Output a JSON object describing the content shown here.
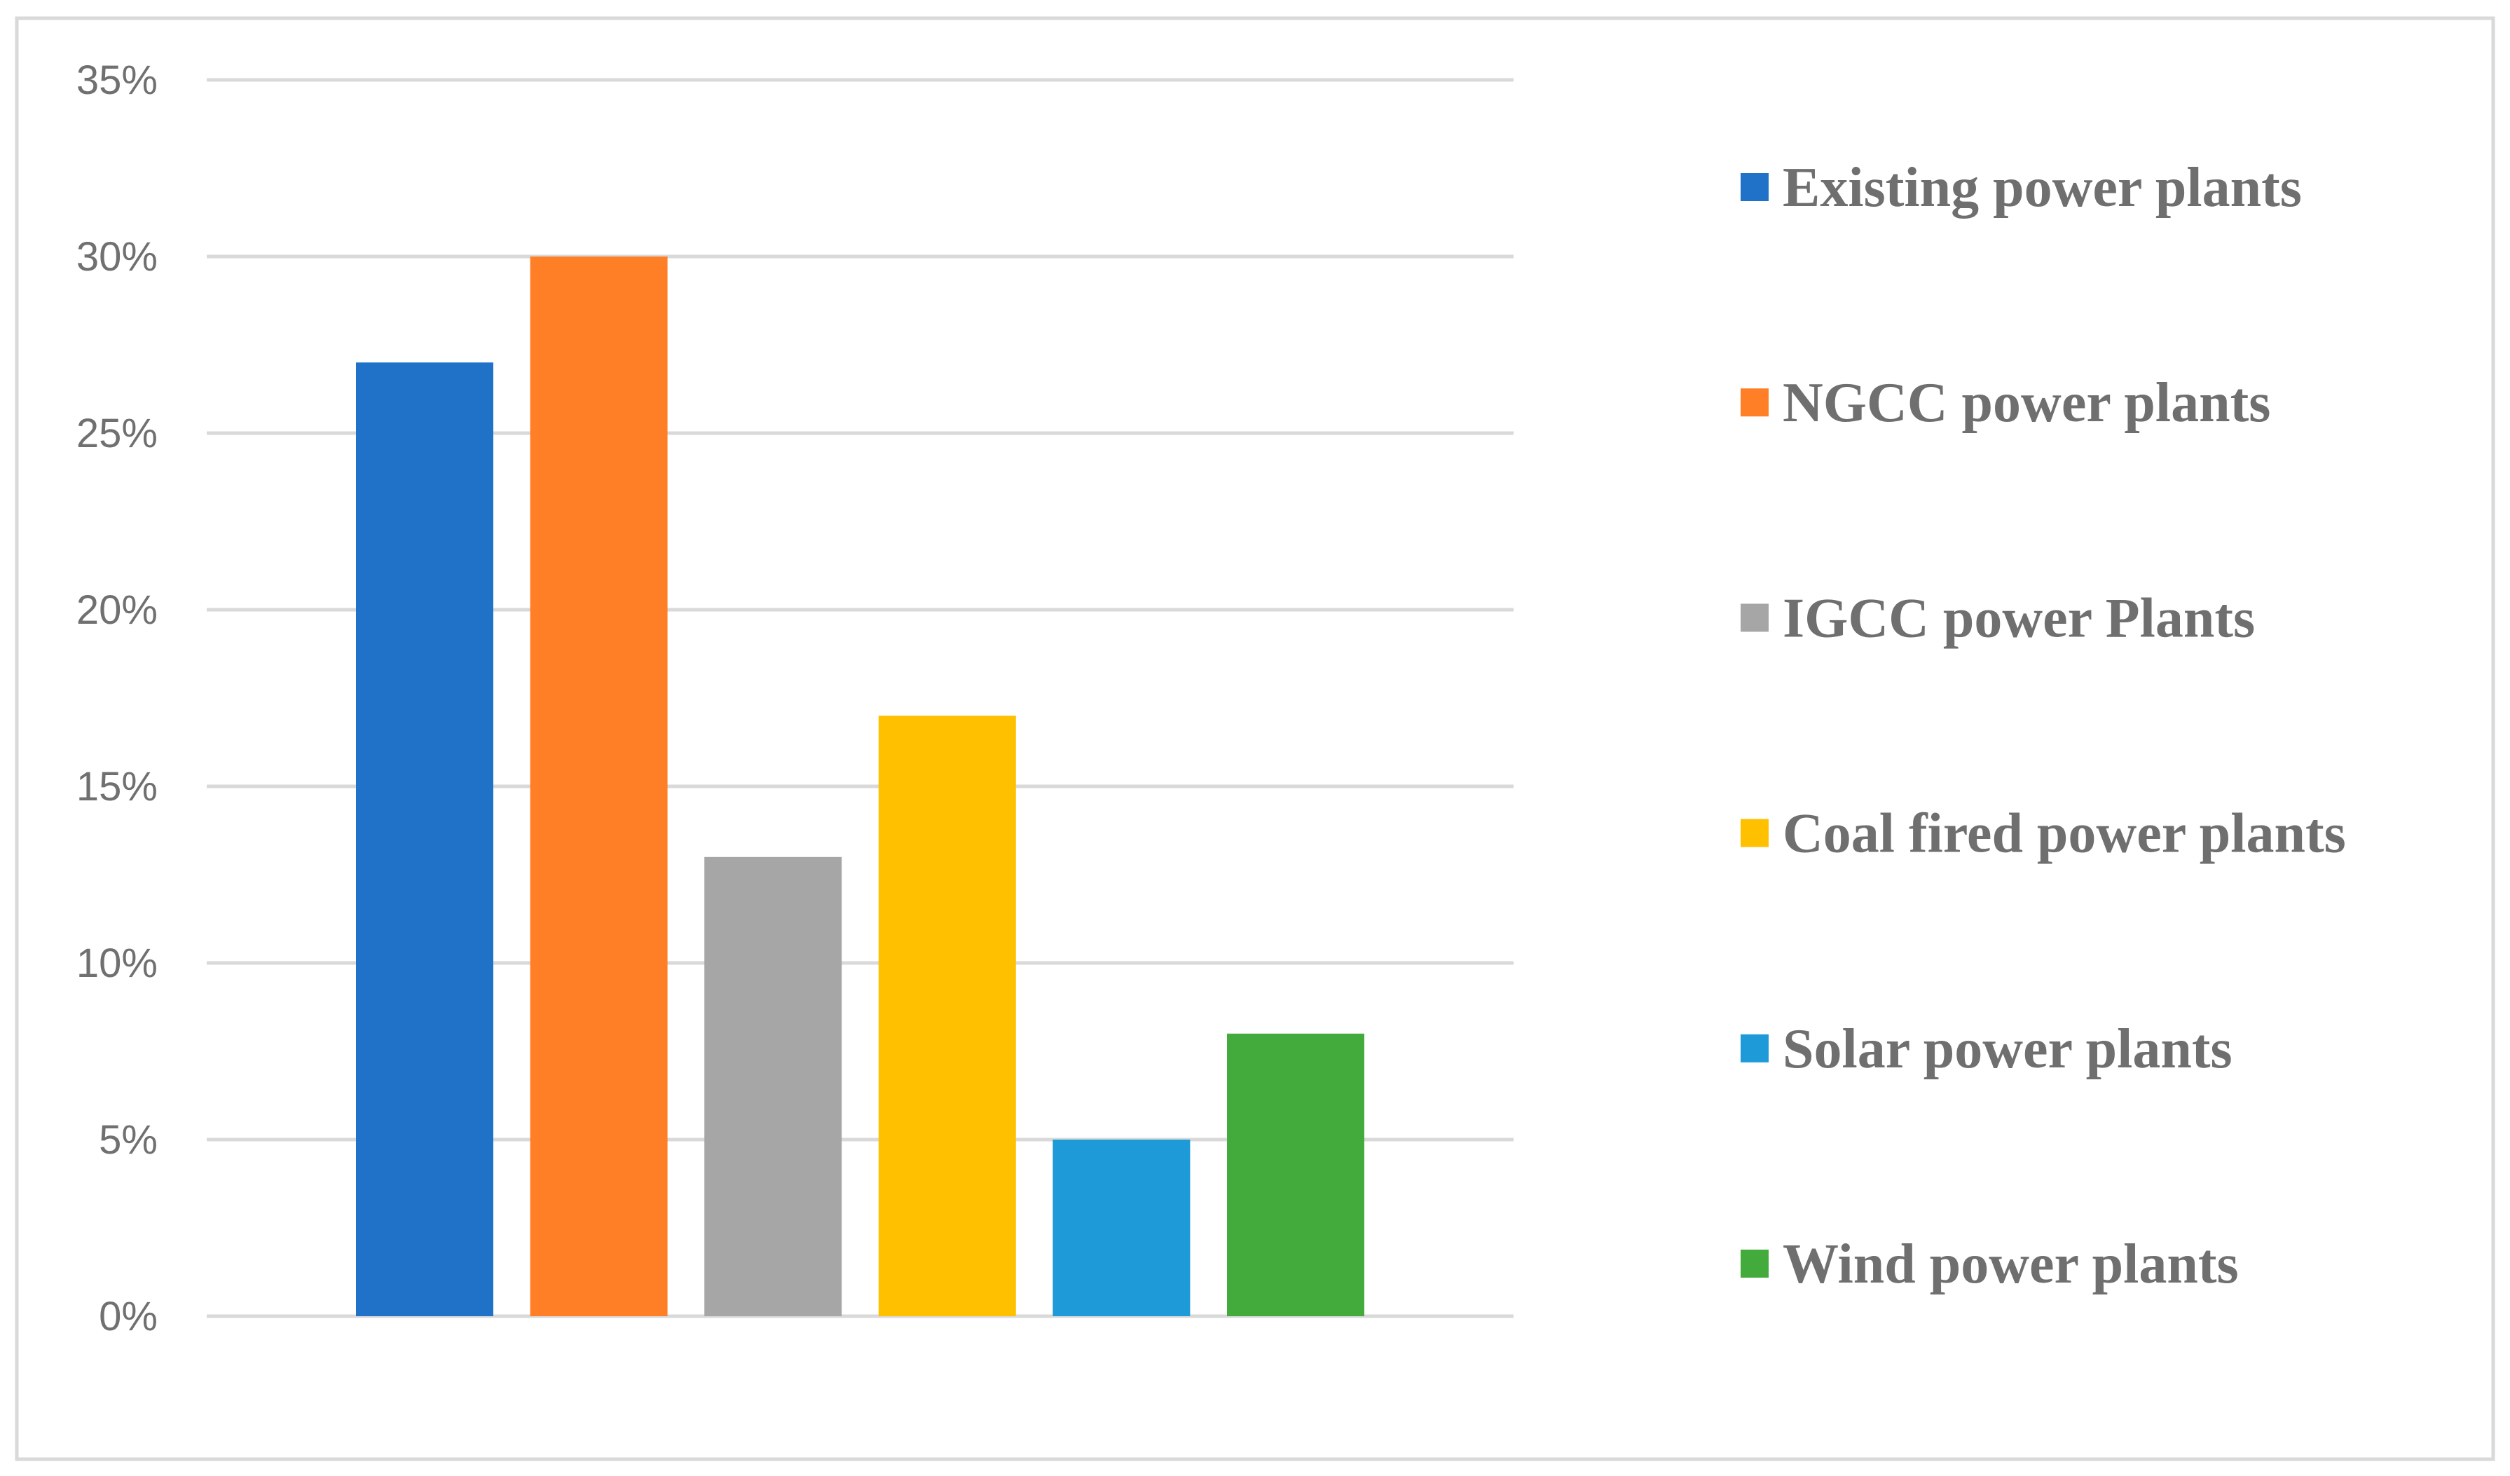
{
  "chart_data": {
    "type": "bar",
    "title": "",
    "xlabel": "",
    "ylabel": "",
    "ylim": [
      0,
      35
    ],
    "y_ticks": [
      0,
      5,
      10,
      15,
      20,
      25,
      30,
      35
    ],
    "y_tick_labels": [
      "0%",
      "5%",
      "10%",
      "15%",
      "20%",
      "25%",
      "30%",
      "35%"
    ],
    "grid": true,
    "legend_position": "right",
    "categories": [
      "Existing power plants",
      "NGCC power plants",
      "IGCC power Plants",
      "Coal fired power plants",
      "Solar power plants",
      "Wind power plants"
    ],
    "values": [
      27,
      30,
      13,
      17,
      5,
      8
    ],
    "colors": [
      "#1f72c8",
      "#ff7f27",
      "#a6a6a6",
      "#ffc000",
      "#1e9ad8",
      "#43ab3c"
    ],
    "frame_color": "#d9d9d9",
    "grid_color": "#d9d9d9"
  }
}
